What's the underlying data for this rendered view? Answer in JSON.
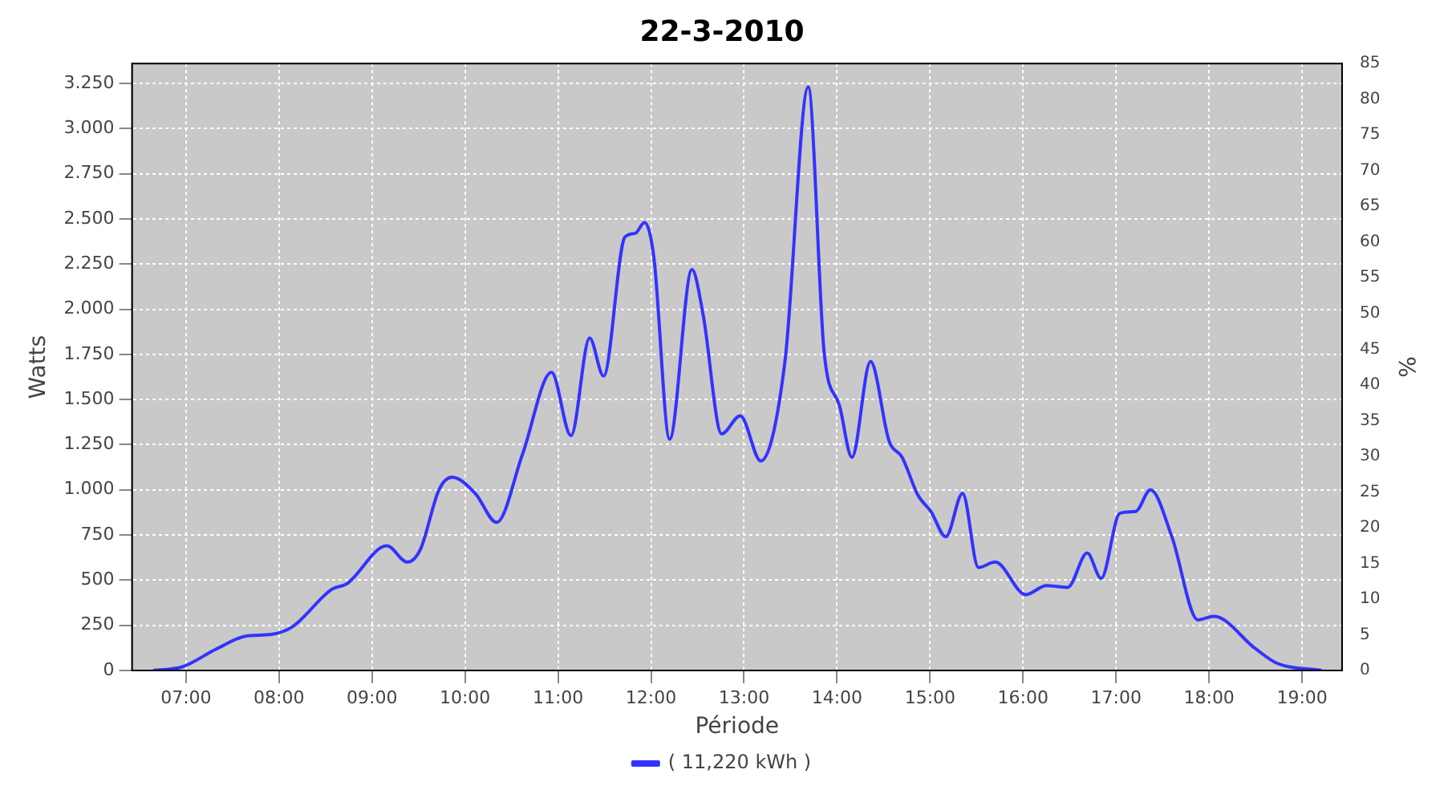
{
  "chart_data": {
    "type": "line",
    "title": "22-3-2010",
    "xlabel": "Période",
    "ylabel": "Watts",
    "y2label": "%",
    "xlim": [
      6.42,
      19.43
    ],
    "xticks": [
      {
        "value": 7,
        "label": "07:00"
      },
      {
        "value": 8,
        "label": "08:00"
      },
      {
        "value": 9,
        "label": "09:00"
      },
      {
        "value": 10,
        "label": "10:00"
      },
      {
        "value": 11,
        "label": "11:00"
      },
      {
        "value": 12,
        "label": "12:00"
      },
      {
        "value": 13,
        "label": "13:00"
      },
      {
        "value": 14,
        "label": "14:00"
      },
      {
        "value": 15,
        "label": "15:00"
      },
      {
        "value": 16,
        "label": "16:00"
      },
      {
        "value": 17,
        "label": "17:00"
      },
      {
        "value": 18,
        "label": "18:00"
      },
      {
        "value": 19,
        "label": "19:00"
      }
    ],
    "ylim": [
      0,
      3360
    ],
    "yticks": [
      {
        "value": 0,
        "label": "0"
      },
      {
        "value": 250,
        "label": "250"
      },
      {
        "value": 500,
        "label": "500"
      },
      {
        "value": 750,
        "label": "750"
      },
      {
        "value": 1000,
        "label": "1.000"
      },
      {
        "value": 1250,
        "label": "1.250"
      },
      {
        "value": 1500,
        "label": "1.500"
      },
      {
        "value": 1750,
        "label": "1.750"
      },
      {
        "value": 2000,
        "label": "2.000"
      },
      {
        "value": 2250,
        "label": "2.250"
      },
      {
        "value": 2500,
        "label": "2.500"
      },
      {
        "value": 2750,
        "label": "2.750"
      },
      {
        "value": 3000,
        "label": "3.000"
      },
      {
        "value": 3250,
        "label": "3.250"
      }
    ],
    "y2lim": [
      0,
      85
    ],
    "y2ticks": [
      0,
      5,
      10,
      15,
      20,
      25,
      30,
      35,
      40,
      45,
      50,
      55,
      60,
      65,
      70,
      75,
      80,
      85
    ],
    "grid": true,
    "legend": "bottom",
    "marker": "none",
    "line_style": "solid",
    "x": [
      6.65,
      6.96,
      7.33,
      7.64,
      7.92,
      8.14,
      8.57,
      8.73,
      9.16,
      9.38,
      9.52,
      9.72,
      9.86,
      10.11,
      10.34,
      10.62,
      10.93,
      11.14,
      11.34,
      11.49,
      11.72,
      11.83,
      11.93,
      12.03,
      12.2,
      12.44,
      12.56,
      12.76,
      12.96,
      13.18,
      13.44,
      13.69,
      13.86,
      14.03,
      14.16,
      14.36,
      14.56,
      14.7,
      14.87,
      15.01,
      15.17,
      15.35,
      15.52,
      15.7,
      16.03,
      16.25,
      16.48,
      16.69,
      16.84,
      17.04,
      17.21,
      17.37,
      17.6,
      17.88,
      18.05,
      18.5,
      18.73,
      19.21
    ],
    "series": [
      {
        "name": "( 11,220 kWh )",
        "color": "#3333ff",
        "values": [
          0,
          20,
          120,
          190,
          200,
          240,
          450,
          480,
          690,
          600,
          670,
          1000,
          1070,
          980,
          820,
          1200,
          1650,
          1300,
          1840,
          1630,
          2400,
          2420,
          2480,
          2290,
          1280,
          2220,
          1970,
          1310,
          1410,
          1160,
          1710,
          3230,
          1770,
          1460,
          1180,
          1710,
          1270,
          1180,
          970,
          880,
          740,
          980,
          570,
          600,
          420,
          470,
          460,
          650,
          510,
          870,
          880,
          1000,
          740,
          280,
          300,
          120,
          40,
          0
        ]
      }
    ]
  }
}
